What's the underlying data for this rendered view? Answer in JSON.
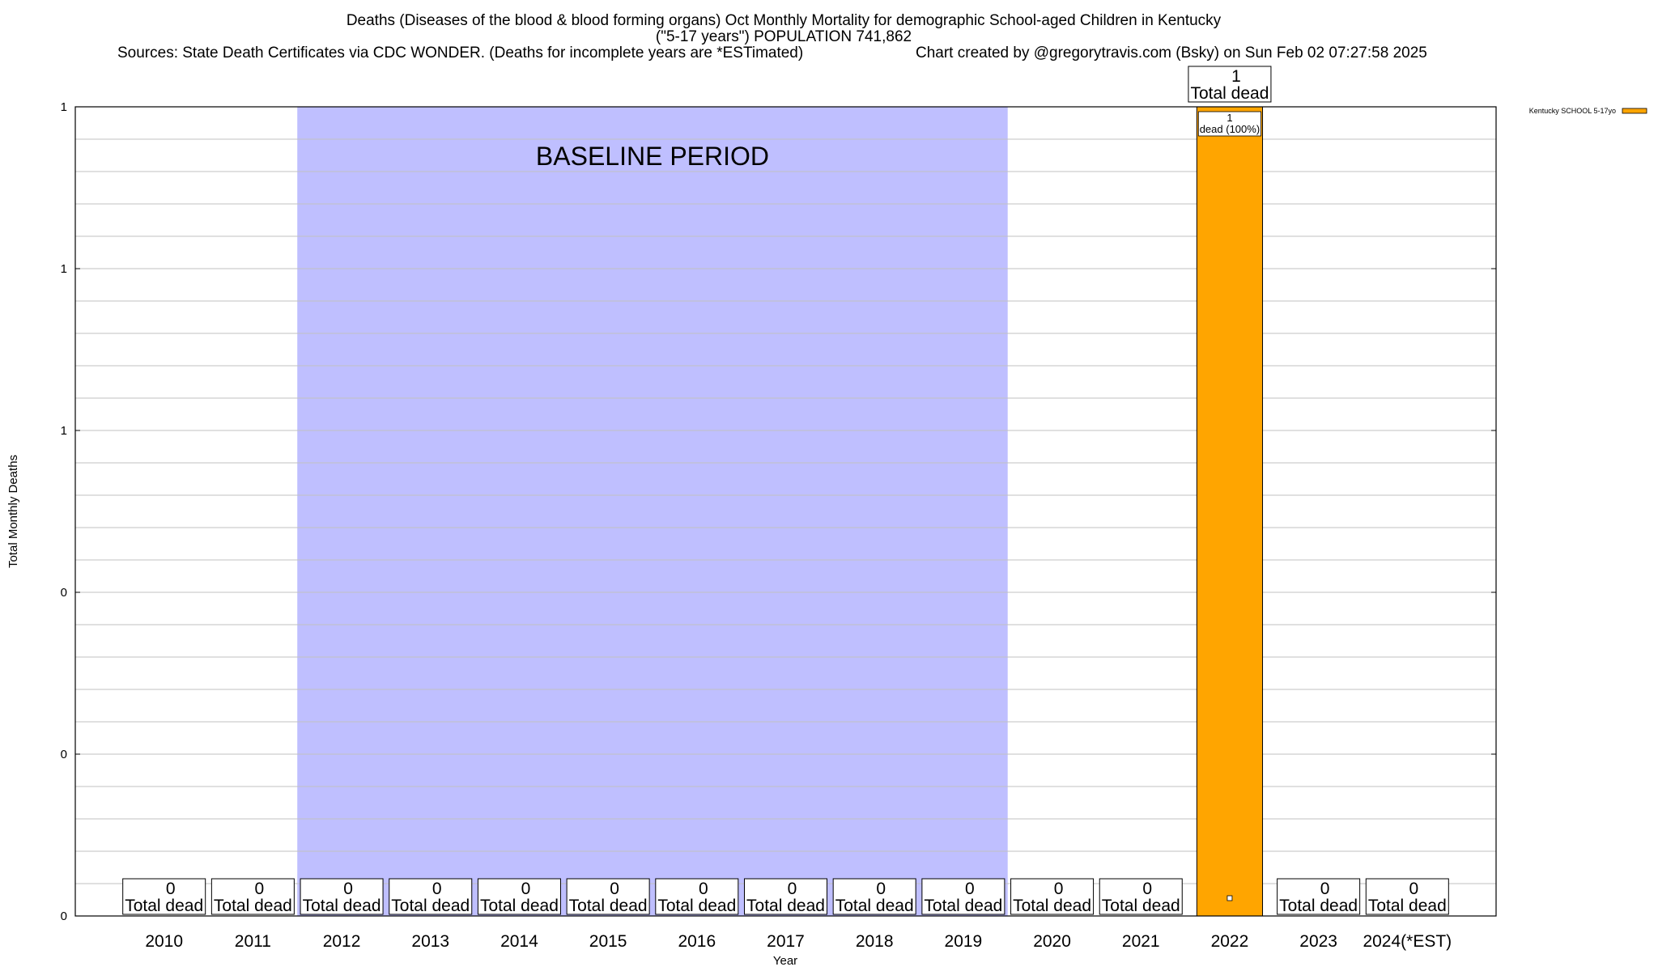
{
  "chart_data": {
    "type": "bar",
    "title": "Deaths (Diseases of the blood & blood forming organs) Oct Monthly Mortality for demographic School-aged Children in Kentucky",
    "subtitle": "(\"5-17 years\") POPULATION 741,862",
    "sources": "Sources: State Death Certificates via CDC WONDER. (Deaths for incomplete years are *ESTimated)",
    "credit": "Chart created by @gregorytravis.com (Bsky) on Sun Feb 02 07:27:58 2025",
    "xlabel": "Year",
    "ylabel": "Total Monthly Deaths",
    "categories": [
      "2010",
      "2011",
      "2012",
      "2013",
      "2014",
      "2015",
      "2016",
      "2017",
      "2018",
      "2019",
      "2020",
      "2021",
      "2022",
      "2023",
      "2024(*EST)"
    ],
    "series": [
      {
        "name": "Kentucky SCHOOL 5-17yo",
        "color": "#FFA500",
        "values": [
          0,
          0,
          0,
          0,
          0,
          0,
          0,
          0,
          0,
          0,
          0,
          0,
          1,
          0,
          0
        ]
      }
    ],
    "total_labels": [
      "0",
      "0",
      "0",
      "0",
      "0",
      "0",
      "0",
      "0",
      "0",
      "0",
      "0",
      "0",
      "1",
      "0",
      "0"
    ],
    "total_label_suffix": "Total dead",
    "bar_inner_label": {
      "value": "1",
      "text": "dead (100%)"
    },
    "ylim": [
      0,
      1
    ],
    "y_tick_labels": [
      "0",
      "0",
      "0",
      "1",
      "1",
      "1"
    ],
    "grid": true,
    "baseline_period": {
      "label": "BASELINE PERIOD",
      "from": "2012",
      "to": "2019",
      "color": "#BFBFFF"
    },
    "legend_position": "top-right"
  }
}
